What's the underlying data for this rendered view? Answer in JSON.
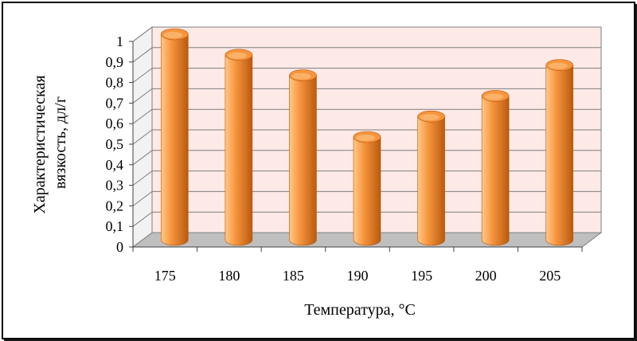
{
  "chart_data": {
    "type": "bar",
    "style": "3d-cylinder",
    "categories": [
      "175",
      "180",
      "185",
      "190",
      "195",
      "200",
      "205"
    ],
    "values": [
      1.0,
      0.9,
      0.8,
      0.5,
      0.6,
      0.7,
      0.85
    ],
    "ylim": [
      0,
      1
    ],
    "yticks": [
      "0",
      "0,1",
      "0,2",
      "0,3",
      "0,4",
      "0,5",
      "0,6",
      "0,7",
      "0,8",
      "0,9",
      "1"
    ],
    "xlabel": "Температура, °C",
    "ylabel_lines": [
      "Характеристическая",
      "вязкость, дл/г"
    ],
    "grid": true,
    "legend": "none",
    "colors": {
      "bar_light": "#ffc98a",
      "bar_mid": "#f7953e",
      "bar_dark": "#b85a10",
      "back_wall": "#fde9e6",
      "floor": "#bfbfbf",
      "side_wall": "#f2f2f2",
      "grid": "#7f7f7f"
    }
  }
}
